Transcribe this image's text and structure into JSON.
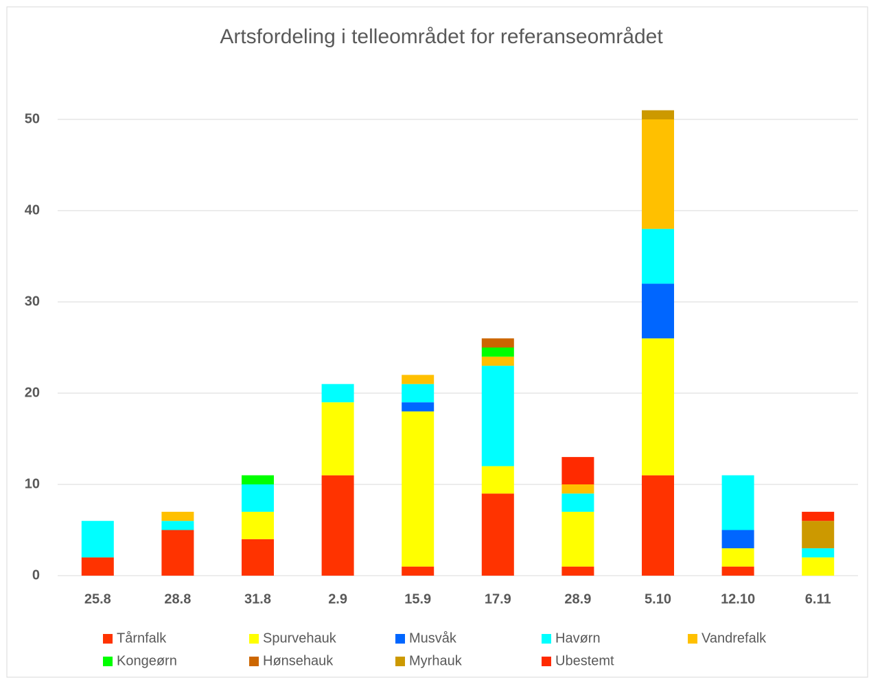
{
  "chart_data": {
    "type": "stacked_bar",
    "title": "Artsfordeling i telleområdet for referanseområdet",
    "categories": [
      "25.8",
      "28.8",
      "31.8",
      "2.9",
      "15.9",
      "17.9",
      "28.9",
      "5.10",
      "12.10",
      "6.11"
    ],
    "series": [
      {
        "name": "Tårnfalk",
        "color": "#ff3300",
        "values": [
          2,
          5,
          4,
          11,
          1,
          9,
          1,
          11,
          1,
          0
        ]
      },
      {
        "name": "Spurvehauk",
        "color": "#ffff00",
        "values": [
          0,
          0,
          3,
          8,
          17,
          3,
          6,
          15,
          2,
          2
        ]
      },
      {
        "name": "Musvåk",
        "color": "#0066ff",
        "values": [
          0,
          0,
          0,
          0,
          1,
          0,
          0,
          6,
          2,
          0
        ]
      },
      {
        "name": "Havørn",
        "color": "#00ffff",
        "values": [
          4,
          1,
          3,
          2,
          2,
          11,
          2,
          6,
          6,
          1
        ]
      },
      {
        "name": "Vandrefalk",
        "color": "#ffc000",
        "values": [
          0,
          1,
          0,
          0,
          1,
          1,
          1,
          12,
          0,
          0
        ]
      },
      {
        "name": "Kongeørn",
        "color": "#00ff00",
        "values": [
          0,
          0,
          1,
          0,
          0,
          1,
          0,
          0,
          0,
          0
        ]
      },
      {
        "name": "Hønsehauk",
        "color": "#cc6600",
        "values": [
          0,
          0,
          0,
          0,
          0,
          1,
          0,
          0,
          0,
          0
        ]
      },
      {
        "name": "Myrhauk",
        "color": "#cc9900",
        "values": [
          0,
          0,
          0,
          0,
          0,
          0,
          0,
          1,
          0,
          3
        ]
      },
      {
        "name": "Ubestemt",
        "color": "#ff2a00",
        "values": [
          0,
          0,
          0,
          0,
          0,
          0,
          3,
          0,
          0,
          1
        ]
      }
    ],
    "ylim": [
      0,
      55
    ],
    "yticks": [
      0,
      10,
      20,
      30,
      40,
      50
    ],
    "grid": true,
    "legend": "bottom"
  }
}
